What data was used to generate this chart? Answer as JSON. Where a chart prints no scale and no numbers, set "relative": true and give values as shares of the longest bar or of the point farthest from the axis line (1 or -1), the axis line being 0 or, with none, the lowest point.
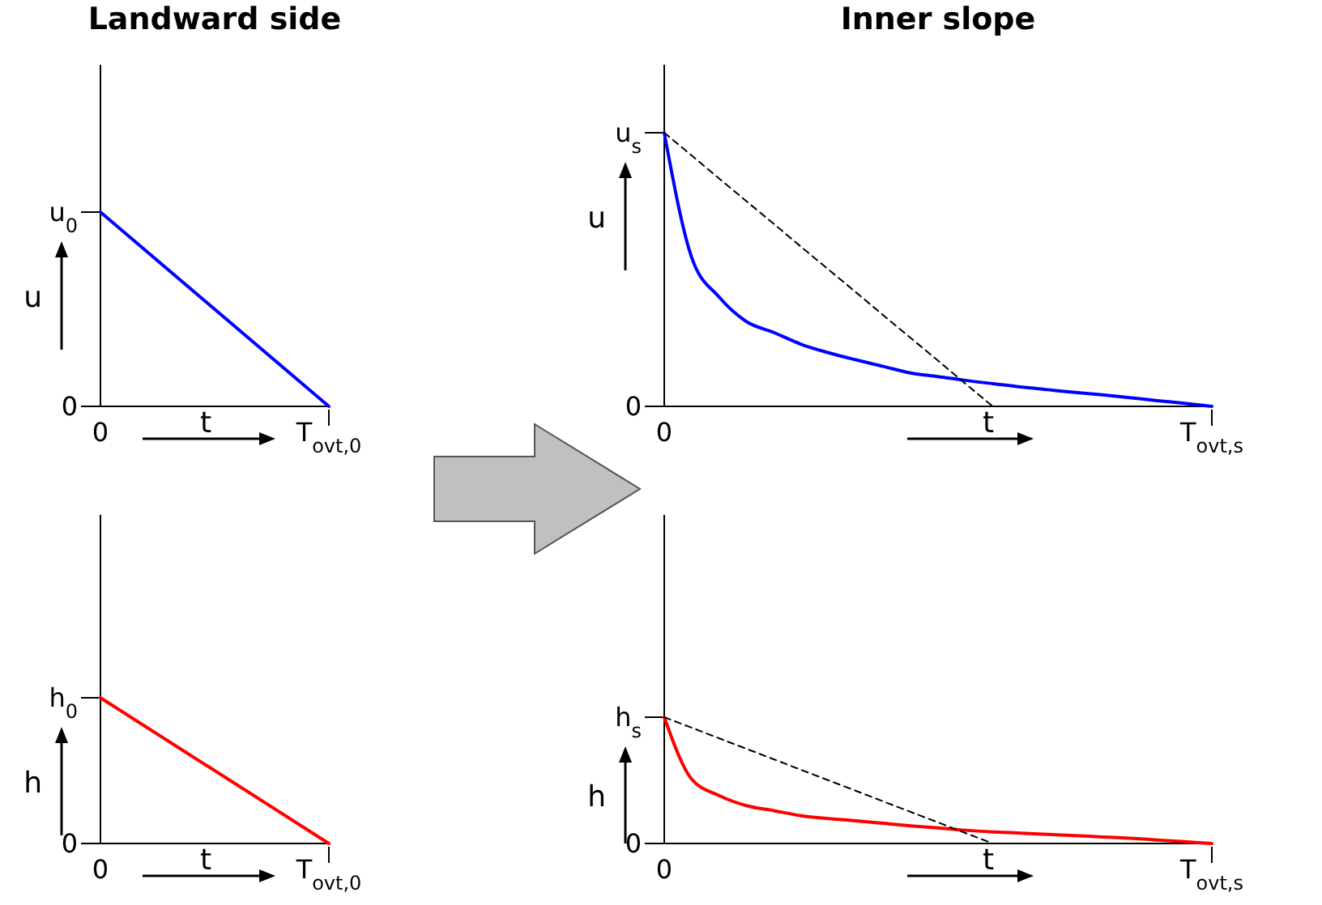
{
  "chart_data": [
    {
      "type": "line",
      "relative": true,
      "title": "Landward side",
      "xlabel": "t",
      "ylabel": "u",
      "categories": [
        "0",
        "T$_{ovt,0}$"
      ],
      "annotations": [
        "0",
        "u$_{0}$"
      ],
      "series": [
        {
          "color": "#0000ff",
          "values": [
            1,
            0
          ]
        }
      ]
    },
    {
      "type": "line",
      "relative": true,
      "title": "Inner slope",
      "xlabel": "t",
      "ylabel": "u",
      "categories": [
        "0",
        null,
        null,
        null,
        null,
        null,
        null,
        null,
        null,
        null,
        null,
        null,
        null,
        null,
        null,
        null,
        null,
        null,
        null,
        null,
        "T$_{ovt,s}$"
      ],
      "annotations": [
        "0",
        "u$_{s}$"
      ],
      "series": [
        {
          "color": "#0000ff",
          "values": [
            1,
            0.545,
            0.4,
            0.31,
            0.27,
            0.227,
            0.196,
            0.17,
            0.146,
            0.122,
            0.109,
            0.095,
            0.083,
            0.071,
            0.061,
            0.051,
            0.042,
            0.032,
            0.021,
            0.011,
            0
          ]
        },
        {
          "color": "#000000",
          "line_style": "dashed",
          "values": [
            1,
            0.917,
            0.833,
            0.75,
            0.667,
            0.583,
            0.5,
            0.417,
            0.333,
            0.25,
            0.167,
            0.083,
            0,
            null,
            null,
            null,
            null,
            null,
            null,
            null,
            null
          ]
        }
      ]
    },
    {
      "type": "line",
      "relative": true,
      "xlabel": "t",
      "ylabel": "h",
      "categories": [
        "0",
        "T$_{ovt,0}$"
      ],
      "annotations": [
        "0",
        "h$_{0}$"
      ],
      "series": [
        {
          "color": "#ff0000",
          "values": [
            1,
            0
          ]
        }
      ]
    },
    {
      "type": "line",
      "relative": true,
      "xlabel": "t",
      "ylabel": "h",
      "categories": [
        "0",
        null,
        null,
        null,
        null,
        null,
        null,
        null,
        null,
        null,
        null,
        null,
        null,
        null,
        null,
        null,
        null,
        null,
        null,
        null,
        "T$_{ovt,s}$"
      ],
      "annotations": [
        "0",
        "h$_{s}$"
      ],
      "series": [
        {
          "color": "#ff0000",
          "values": [
            1,
            0.51,
            0.38,
            0.3,
            0.26,
            0.22,
            0.197,
            0.18,
            0.16,
            0.14,
            0.123,
            0.105,
            0.092,
            0.082,
            0.072,
            0.062,
            0.052,
            0.042,
            0.028,
            0.014,
            0
          ]
        },
        {
          "color": "#000000",
          "line_style": "dashed",
          "values": [
            1,
            0.917,
            0.833,
            0.75,
            0.667,
            0.583,
            0.5,
            0.417,
            0.333,
            0.25,
            0.167,
            0.083,
            0,
            null,
            null,
            null,
            null,
            null,
            null,
            null,
            null
          ]
        }
      ]
    }
  ]
}
